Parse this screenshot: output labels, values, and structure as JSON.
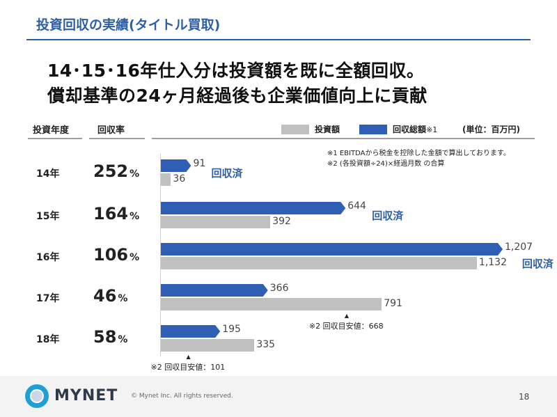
{
  "header": {
    "title": "投資回収の実績(タイトル買取)",
    "headline_line1": "14･15･16年仕入分は投資額を既に全額回収。",
    "headline_line2": "償却基準の24ヶ月経過後も企業価値向上に貢献"
  },
  "table_headers": {
    "year": "投資年度",
    "rate": "回収率"
  },
  "legend": {
    "investment": "投資額",
    "recovery": "回収総額",
    "recovery_mark": "※1",
    "unit": "(単位：百万円)",
    "colors": {
      "investment": "#c0c0c0",
      "recovery": "#2e5fb5"
    }
  },
  "notes": {
    "note1": "※1 EBITDAから税金を控除した金額で算出しております。",
    "note2": "※2 (各投資額÷24)×経過月数 の合算"
  },
  "chart_data": {
    "type": "bar",
    "orientation": "horizontal",
    "categories": [
      "14年",
      "15年",
      "16年",
      "17年",
      "18年"
    ],
    "series": [
      {
        "name": "回収総額",
        "values": [
          91,
          644,
          1207,
          366,
          195
        ],
        "labels": [
          "91",
          "644",
          "1,207",
          "366",
          "195"
        ]
      },
      {
        "name": "投資額",
        "values": [
          36,
          392,
          1132,
          791,
          335
        ],
        "labels": [
          "36",
          "392",
          "1,132",
          "791",
          "335"
        ]
      }
    ],
    "recovery_rates": [
      "252",
      "164",
      "106",
      "46",
      "58"
    ],
    "rate_unit": "%",
    "completed_label": "回収済",
    "completed": [
      true,
      true,
      true,
      false,
      false
    ],
    "targets": [
      {
        "category": "17年",
        "value": 668,
        "label": "※2 回収目安値：668"
      },
      {
        "category": "18年",
        "value": 101,
        "label": "※2 回収目安値：101"
      }
    ],
    "xlim": [
      0,
      1400
    ]
  },
  "footer": {
    "logo": "MYNET",
    "copyright": "© Mynet Inc. All rights reserved.",
    "page_number": "18"
  }
}
